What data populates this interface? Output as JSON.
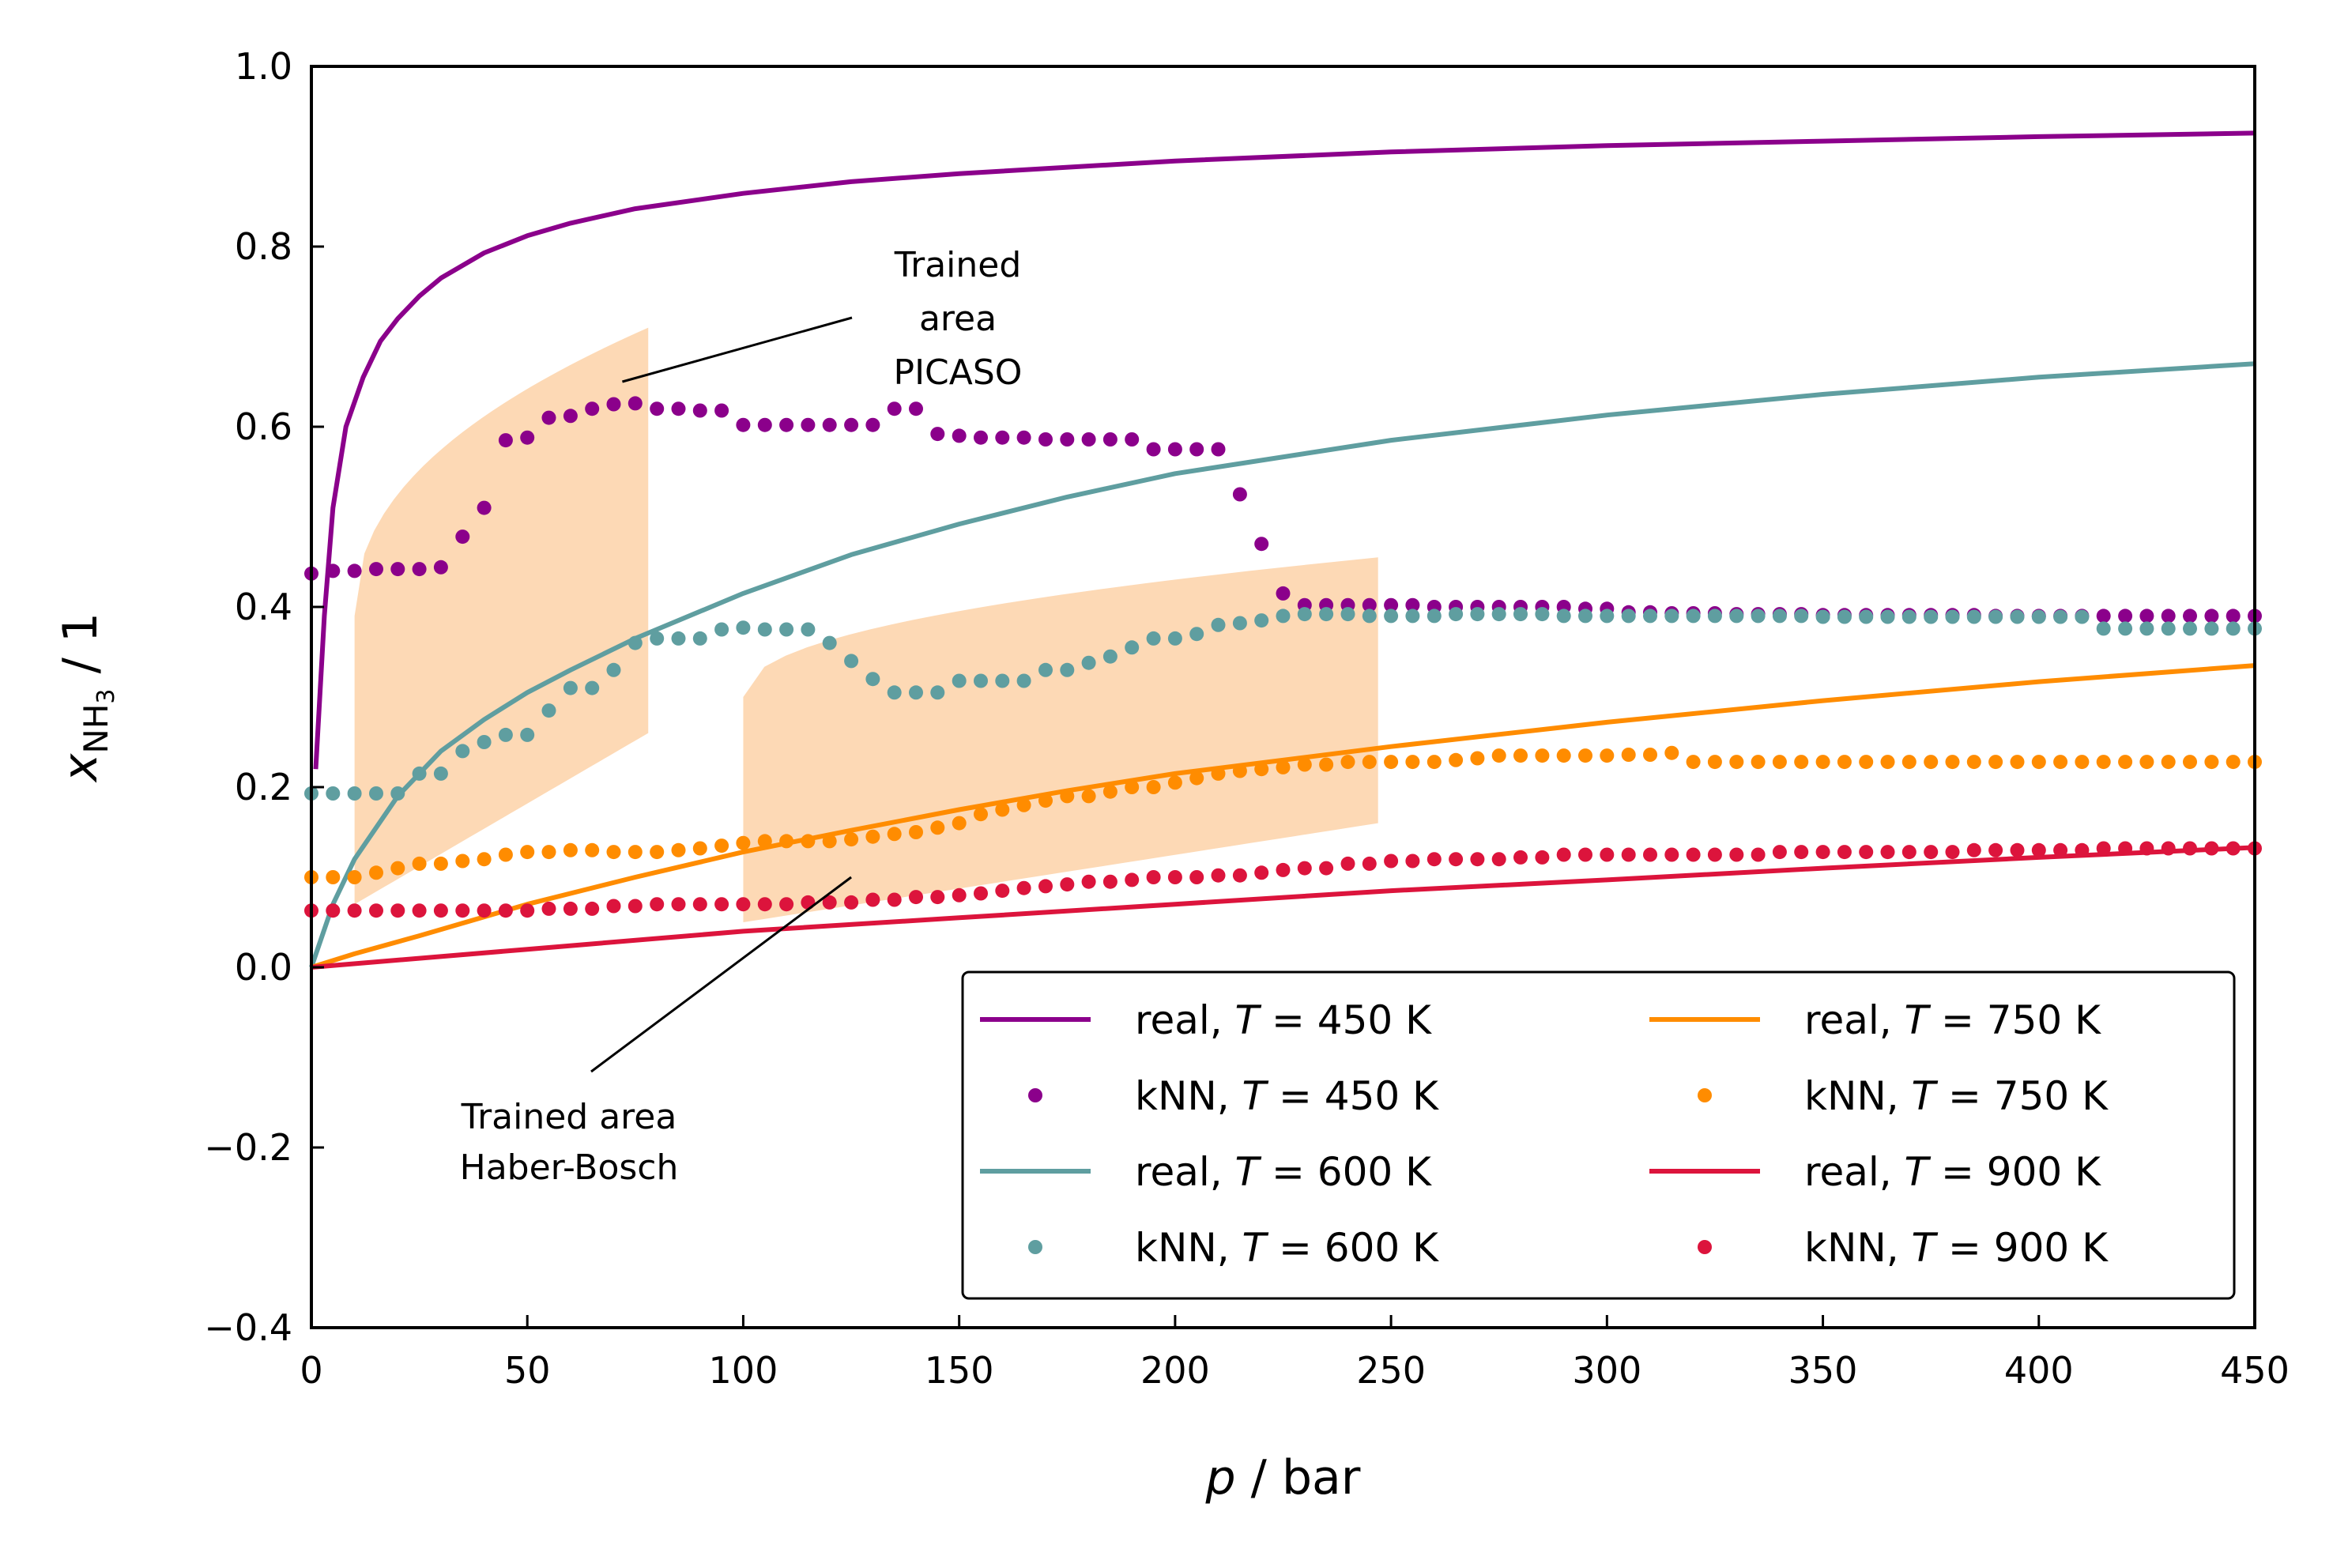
{
  "chart_data": {
    "type": "line",
    "xlabel": "p / bar",
    "ylabel": "x_NH3 / 1",
    "xlim": [
      0,
      450
    ],
    "ylim": [
      -0.4,
      1.0
    ],
    "xticks": [
      "0",
      "50",
      "100",
      "150",
      "200",
      "250",
      "300",
      "350",
      "400",
      "450"
    ],
    "yticks": [
      "−0.4",
      "−0.2",
      "0.0",
      "0.2",
      "0.4",
      "0.6",
      "0.8",
      "1.0"
    ],
    "grid": false,
    "legend_position": "lower right",
    "colors": {
      "450": "#8B008B",
      "600": "#5F9EA0",
      "750": "#FF8C00",
      "900": "#DC143C",
      "trained_area": "#FDD9B5"
    },
    "shaded_regions": [
      {
        "x": [
          10,
          78
        ],
        "lower": [
          0.07,
          0.26
        ],
        "upper": [
          0.39,
          0.71
        ]
      },
      {
        "x": [
          100,
          247
        ],
        "lower": [
          0.05,
          0.16
        ],
        "upper": [
          0.3,
          0.455
        ]
      }
    ],
    "annotations": [
      {
        "text": "Trained\narea\nPICASO",
        "points_to": [
          72,
          0.65
        ]
      },
      {
        "text": "Trained area\nHaber-Bosch",
        "points_to": [
          125,
          0.1
        ]
      }
    ],
    "series": [
      {
        "name": "real, T = 450 K",
        "kind": "line",
        "temp": "450",
        "x": [
          1,
          3,
          5,
          8,
          12,
          16,
          20,
          25,
          30,
          40,
          50,
          60,
          75,
          100,
          125,
          150,
          200,
          250,
          300,
          350,
          400,
          450
        ],
        "y": [
          0.22,
          0.39,
          0.51,
          0.6,
          0.655,
          0.695,
          0.72,
          0.745,
          0.765,
          0.793,
          0.812,
          0.826,
          0.842,
          0.859,
          0.872,
          0.881,
          0.895,
          0.905,
          0.912,
          0.917,
          0.922,
          0.926
        ]
      },
      {
        "name": "kNN, T = 450 K",
        "kind": "points",
        "temp": "450",
        "x": [
          0,
          5,
          10,
          15,
          20,
          25,
          30,
          35,
          40,
          45,
          50,
          55,
          60,
          65,
          70,
          75,
          80,
          85,
          90,
          95,
          100,
          105,
          110,
          115,
          120,
          125,
          130,
          135,
          140,
          145,
          150,
          155,
          160,
          165,
          170,
          175,
          180,
          185,
          190,
          195,
          200,
          205,
          210,
          215,
          220,
          225,
          230,
          235,
          240,
          245,
          250,
          255,
          260,
          265,
          270,
          275,
          280,
          285,
          290,
          295,
          300,
          305,
          310,
          315,
          320,
          325,
          330,
          335,
          340,
          345,
          350,
          355,
          360,
          365,
          370,
          375,
          380,
          385,
          390,
          395,
          400,
          405,
          410,
          415,
          420,
          425,
          430,
          435,
          440,
          445,
          450
        ],
        "y": [
          0.437,
          0.44,
          0.44,
          0.442,
          0.442,
          0.442,
          0.444,
          0.478,
          0.51,
          0.585,
          0.588,
          0.61,
          0.612,
          0.62,
          0.625,
          0.626,
          0.62,
          0.62,
          0.618,
          0.618,
          0.602,
          0.602,
          0.602,
          0.602,
          0.602,
          0.602,
          0.602,
          0.62,
          0.62,
          0.592,
          0.59,
          0.588,
          0.588,
          0.588,
          0.586,
          0.586,
          0.586,
          0.586,
          0.586,
          0.575,
          0.575,
          0.575,
          0.575,
          0.525,
          0.47,
          0.415,
          0.402,
          0.402,
          0.402,
          0.402,
          0.402,
          0.402,
          0.4,
          0.4,
          0.4,
          0.4,
          0.4,
          0.4,
          0.4,
          0.398,
          0.398,
          0.394,
          0.394,
          0.393,
          0.393,
          0.393,
          0.392,
          0.392,
          0.392,
          0.392,
          0.391,
          0.391,
          0.391,
          0.391,
          0.391,
          0.391,
          0.391,
          0.391,
          0.39,
          0.39,
          0.39,
          0.39,
          0.39,
          0.39,
          0.39,
          0.39,
          0.39,
          0.39,
          0.39,
          0.39,
          0.39
        ]
      },
      {
        "name": "real, T = 600 K",
        "kind": "line",
        "temp": "600",
        "x": [
          0,
          5,
          10,
          20,
          30,
          40,
          50,
          60,
          75,
          100,
          125,
          150,
          175,
          200,
          250,
          300,
          350,
          400,
          450
        ],
        "y": [
          0.0,
          0.07,
          0.12,
          0.19,
          0.24,
          0.275,
          0.305,
          0.33,
          0.365,
          0.415,
          0.458,
          0.492,
          0.522,
          0.548,
          0.585,
          0.613,
          0.636,
          0.655,
          0.67
        ]
      },
      {
        "name": "kNN, T = 600 K",
        "kind": "points",
        "temp": "600",
        "x": [
          0,
          5,
          10,
          15,
          20,
          25,
          30,
          35,
          40,
          45,
          50,
          55,
          60,
          65,
          70,
          75,
          80,
          85,
          90,
          95,
          100,
          105,
          110,
          115,
          120,
          125,
          130,
          135,
          140,
          145,
          150,
          155,
          160,
          165,
          170,
          175,
          180,
          185,
          190,
          195,
          200,
          205,
          210,
          215,
          220,
          225,
          230,
          235,
          240,
          245,
          250,
          255,
          260,
          265,
          270,
          275,
          280,
          285,
          290,
          295,
          300,
          305,
          310,
          315,
          320,
          325,
          330,
          335,
          340,
          345,
          350,
          355,
          360,
          365,
          370,
          375,
          380,
          385,
          390,
          395,
          400,
          405,
          410,
          415,
          420,
          425,
          430,
          435,
          440,
          445,
          450
        ],
        "y": [
          0.193,
          0.193,
          0.193,
          0.193,
          0.193,
          0.215,
          0.215,
          0.24,
          0.25,
          0.258,
          0.258,
          0.285,
          0.31,
          0.31,
          0.33,
          0.36,
          0.365,
          0.365,
          0.365,
          0.375,
          0.377,
          0.375,
          0.375,
          0.375,
          0.36,
          0.34,
          0.32,
          0.305,
          0.305,
          0.305,
          0.318,
          0.318,
          0.318,
          0.318,
          0.33,
          0.33,
          0.338,
          0.345,
          0.355,
          0.365,
          0.365,
          0.37,
          0.38,
          0.382,
          0.385,
          0.39,
          0.392,
          0.392,
          0.392,
          0.39,
          0.39,
          0.39,
          0.39,
          0.392,
          0.392,
          0.392,
          0.392,
          0.392,
          0.39,
          0.39,
          0.39,
          0.39,
          0.39,
          0.39,
          0.39,
          0.39,
          0.39,
          0.39,
          0.39,
          0.39,
          0.389,
          0.389,
          0.389,
          0.389,
          0.389,
          0.389,
          0.389,
          0.389,
          0.389,
          0.389,
          0.389,
          0.389,
          0.389,
          0.376,
          0.376,
          0.376,
          0.376,
          0.376,
          0.376,
          0.376,
          0.376
        ]
      },
      {
        "name": "real, T = 750 K",
        "kind": "line",
        "temp": "750",
        "x": [
          0,
          10,
          25,
          50,
          75,
          100,
          125,
          150,
          175,
          200,
          250,
          300,
          350,
          400,
          450
        ],
        "y": [
          0.0,
          0.015,
          0.035,
          0.07,
          0.1,
          0.128,
          0.152,
          0.175,
          0.196,
          0.215,
          0.245,
          0.272,
          0.296,
          0.317,
          0.335
        ]
      },
      {
        "name": "kNN, T = 750 K",
        "kind": "points",
        "temp": "750",
        "x": [
          0,
          5,
          10,
          15,
          20,
          25,
          30,
          35,
          40,
          45,
          50,
          55,
          60,
          65,
          70,
          75,
          80,
          85,
          90,
          95,
          100,
          105,
          110,
          115,
          120,
          125,
          130,
          135,
          140,
          145,
          150,
          155,
          160,
          165,
          170,
          175,
          180,
          185,
          190,
          195,
          200,
          205,
          210,
          215,
          220,
          225,
          230,
          235,
          240,
          245,
          250,
          255,
          260,
          265,
          270,
          275,
          280,
          285,
          290,
          295,
          300,
          305,
          310,
          315,
          320,
          325,
          330,
          335,
          340,
          345,
          350,
          355,
          360,
          365,
          370,
          375,
          380,
          385,
          390,
          395,
          400,
          405,
          410,
          415,
          420,
          425,
          430,
          435,
          440,
          445,
          450
        ],
        "y": [
          0.1,
          0.1,
          0.1,
          0.105,
          0.11,
          0.115,
          0.115,
          0.118,
          0.12,
          0.125,
          0.128,
          0.128,
          0.13,
          0.13,
          0.128,
          0.128,
          0.128,
          0.13,
          0.132,
          0.135,
          0.138,
          0.14,
          0.14,
          0.14,
          0.14,
          0.142,
          0.145,
          0.148,
          0.15,
          0.155,
          0.16,
          0.17,
          0.175,
          0.18,
          0.185,
          0.19,
          0.19,
          0.195,
          0.2,
          0.2,
          0.205,
          0.21,
          0.215,
          0.218,
          0.22,
          0.222,
          0.225,
          0.225,
          0.228,
          0.228,
          0.228,
          0.228,
          0.228,
          0.23,
          0.232,
          0.235,
          0.235,
          0.235,
          0.235,
          0.235,
          0.235,
          0.236,
          0.236,
          0.238,
          0.228,
          0.228,
          0.228,
          0.228,
          0.228,
          0.228,
          0.228,
          0.228,
          0.228,
          0.228,
          0.228,
          0.228,
          0.228,
          0.228,
          0.228,
          0.228,
          0.228,
          0.228,
          0.228,
          0.228,
          0.228,
          0.228,
          0.228,
          0.228,
          0.228,
          0.228,
          0.228
        ]
      },
      {
        "name": "real, T = 900 K",
        "kind": "line",
        "temp": "900",
        "x": [
          0,
          50,
          100,
          150,
          200,
          250,
          300,
          350,
          400,
          450
        ],
        "y": [
          0.0,
          0.02,
          0.04,
          0.055,
          0.07,
          0.085,
          0.097,
          0.11,
          0.122,
          0.133
        ]
      },
      {
        "name": "kNN, T = 900 K",
        "kind": "points",
        "temp": "900",
        "x": [
          0,
          5,
          10,
          15,
          20,
          25,
          30,
          35,
          40,
          45,
          50,
          55,
          60,
          65,
          70,
          75,
          80,
          85,
          90,
          95,
          100,
          105,
          110,
          115,
          120,
          125,
          130,
          135,
          140,
          145,
          150,
          155,
          160,
          165,
          170,
          175,
          180,
          185,
          190,
          195,
          200,
          205,
          210,
          215,
          220,
          225,
          230,
          235,
          240,
          245,
          250,
          255,
          260,
          265,
          270,
          275,
          280,
          285,
          290,
          295,
          300,
          305,
          310,
          315,
          320,
          325,
          330,
          335,
          340,
          345,
          350,
          355,
          360,
          365,
          370,
          375,
          380,
          385,
          390,
          395,
          400,
          405,
          410,
          415,
          420,
          425,
          430,
          435,
          440,
          445,
          450
        ],
        "y": [
          0.063,
          0.063,
          0.063,
          0.063,
          0.063,
          0.063,
          0.063,
          0.063,
          0.063,
          0.063,
          0.063,
          0.065,
          0.065,
          0.065,
          0.068,
          0.068,
          0.07,
          0.07,
          0.07,
          0.07,
          0.07,
          0.07,
          0.07,
          0.072,
          0.072,
          0.072,
          0.075,
          0.075,
          0.078,
          0.078,
          0.08,
          0.082,
          0.085,
          0.088,
          0.09,
          0.092,
          0.095,
          0.095,
          0.097,
          0.1,
          0.1,
          0.1,
          0.102,
          0.102,
          0.105,
          0.108,
          0.11,
          0.11,
          0.115,
          0.115,
          0.118,
          0.118,
          0.12,
          0.12,
          0.12,
          0.12,
          0.122,
          0.122,
          0.125,
          0.125,
          0.125,
          0.125,
          0.125,
          0.125,
          0.125,
          0.125,
          0.125,
          0.125,
          0.128,
          0.128,
          0.128,
          0.128,
          0.128,
          0.128,
          0.128,
          0.128,
          0.128,
          0.13,
          0.13,
          0.13,
          0.13,
          0.13,
          0.13,
          0.132,
          0.132,
          0.132,
          0.132,
          0.132,
          0.132,
          0.132,
          0.132
        ]
      }
    ]
  }
}
